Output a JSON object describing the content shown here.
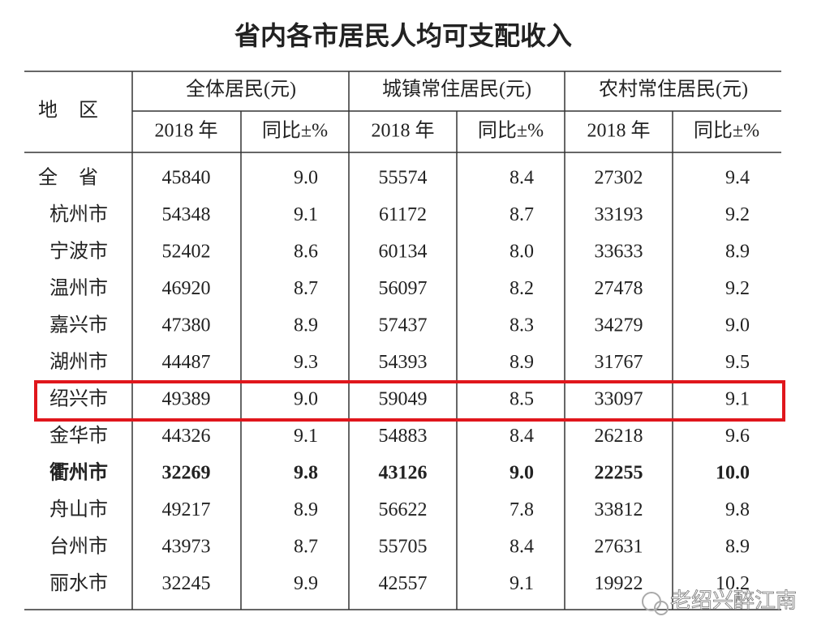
{
  "title": "省内各市居民人均可支配收入",
  "table": {
    "region_header": "地区",
    "groups": [
      "全体居民(元)",
      "城镇常住居民(元)",
      "农村常住居民(元)"
    ],
    "subheaders": [
      "2018 年",
      "同比±%",
      "2018 年",
      "同比±%",
      "2018 年",
      "同比±%"
    ],
    "rows": [
      {
        "region": "全省",
        "cells": [
          "45840",
          "9.0",
          "55574",
          "8.4",
          "27302",
          "9.4"
        ]
      },
      {
        "region": "杭州市",
        "cells": [
          "54348",
          "9.1",
          "61172",
          "8.7",
          "33193",
          "9.2"
        ]
      },
      {
        "region": "宁波市",
        "cells": [
          "52402",
          "8.6",
          "60134",
          "8.0",
          "33633",
          "8.9"
        ]
      },
      {
        "region": "温州市",
        "cells": [
          "46920",
          "8.7",
          "56097",
          "8.2",
          "27478",
          "9.2"
        ]
      },
      {
        "region": "嘉兴市",
        "cells": [
          "47380",
          "8.9",
          "57437",
          "8.3",
          "34279",
          "9.0"
        ]
      },
      {
        "region": "湖州市",
        "cells": [
          "44487",
          "9.3",
          "54393",
          "8.9",
          "31767",
          "9.5"
        ]
      },
      {
        "region": "绍兴市",
        "cells": [
          "49389",
          "9.0",
          "59049",
          "8.5",
          "33097",
          "9.1"
        ],
        "highlight": true
      },
      {
        "region": "金华市",
        "cells": [
          "44326",
          "9.1",
          "54883",
          "8.4",
          "26218",
          "9.6"
        ]
      },
      {
        "region": "衢州市",
        "cells": [
          "32269",
          "9.8",
          "43126",
          "9.0",
          "22255",
          "10.0"
        ],
        "bold": true
      },
      {
        "region": "舟山市",
        "cells": [
          "49217",
          "8.9",
          "56622",
          "7.8",
          "33812",
          "9.8"
        ]
      },
      {
        "region": "台州市",
        "cells": [
          "43973",
          "8.7",
          "55705",
          "8.4",
          "27631",
          "8.9"
        ]
      },
      {
        "region": "丽水市",
        "cells": [
          "32245",
          "9.9",
          "42557",
          "9.1",
          "19922",
          "10.2"
        ]
      }
    ]
  },
  "watermark": "老绍兴醉江南"
}
